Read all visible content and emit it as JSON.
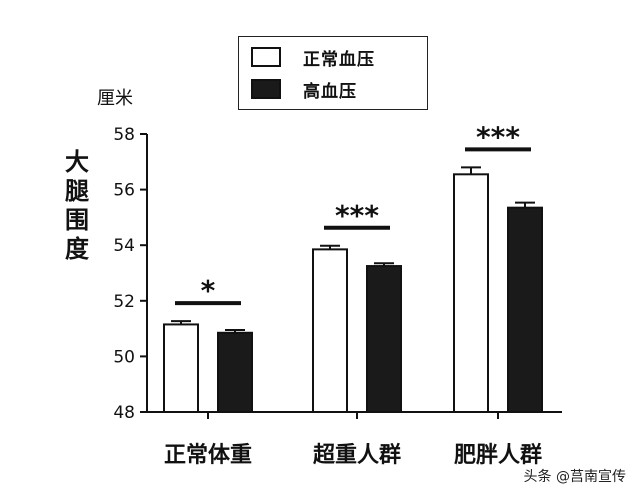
{
  "chart_data": {
    "type": "bar",
    "unit_label": "厘米",
    "ylabel": "大腿围度",
    "categories": [
      "正常体重",
      "超重人群",
      "肥胖人群"
    ],
    "series": [
      {
        "name": "正常血压",
        "values": [
          51.15,
          53.85,
          56.55
        ],
        "errors": [
          0.12,
          0.13,
          0.25
        ],
        "color": "#ffffff"
      },
      {
        "name": "高血压",
        "values": [
          50.85,
          53.25,
          55.35
        ],
        "errors": [
          0.1,
          0.1,
          0.18
        ],
        "color": "#1a1a1a"
      }
    ],
    "ylim": [
      48,
      58
    ],
    "yticks": [
      48,
      50,
      52,
      54,
      56,
      58
    ],
    "significance": [
      "*",
      "***",
      "***"
    ],
    "legend_position": "top-center",
    "grid": false
  },
  "watermark": "头条 @莒南宣传"
}
